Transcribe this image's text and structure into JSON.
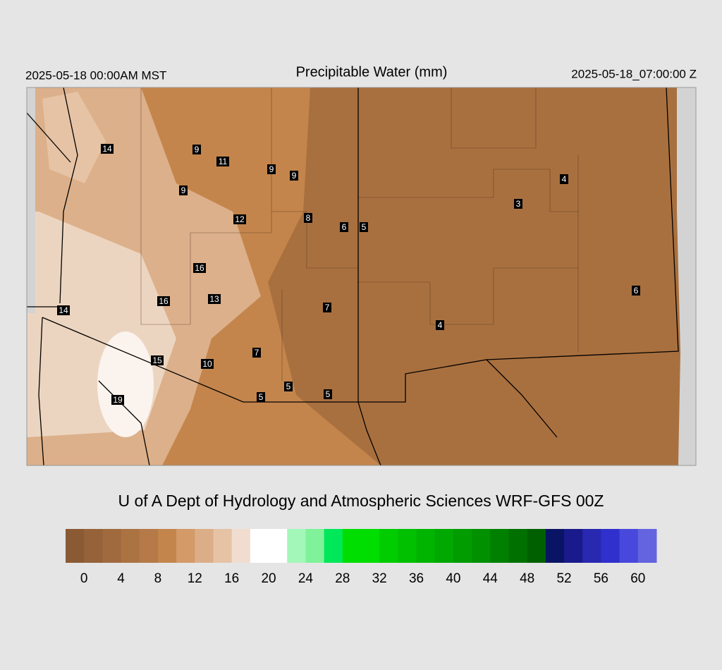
{
  "header": {
    "left": "2025-05-18 00:00AM MST",
    "title": "Precipitable Water (mm)",
    "right": "2025-05-18_07:00:00 Z"
  },
  "map": {
    "labels": [
      14,
      9,
      11,
      9,
      9,
      9,
      4,
      3,
      12,
      8,
      6,
      5,
      16,
      16,
      13,
      14,
      6,
      7,
      4,
      7,
      15,
      10,
      5,
      5,
      5,
      19
    ]
  },
  "footer": "U of A Dept of Hydrology and Atmospheric Sciences WRF-GFS 00Z",
  "colorbar": {
    "lim": [
      -2,
      62
    ],
    "ticks": [
      0,
      4,
      8,
      12,
      16,
      20,
      24,
      28,
      32,
      36,
      40,
      44,
      48,
      52,
      56,
      60
    ],
    "colors": [
      "#8a5a35",
      "#966239",
      "#a0693e",
      "#ab7242",
      "#b57a47",
      "#c4854c",
      "#d49a68",
      "#dcae88",
      "#e6c3a5",
      "#f0ddd0",
      "#ffffff",
      "#ffffff",
      "#a3f7b9",
      "#7ff29a",
      "#00e85a",
      "#00dd00",
      "#00dd00",
      "#00cc00",
      "#00c000",
      "#00b400",
      "#00a800",
      "#009c00",
      "#009000",
      "#008000",
      "#007000",
      "#006000",
      "#0a1464",
      "#1a1a8c",
      "#2828b0",
      "#3030cc",
      "#4848dc",
      "#6464e0"
    ]
  }
}
